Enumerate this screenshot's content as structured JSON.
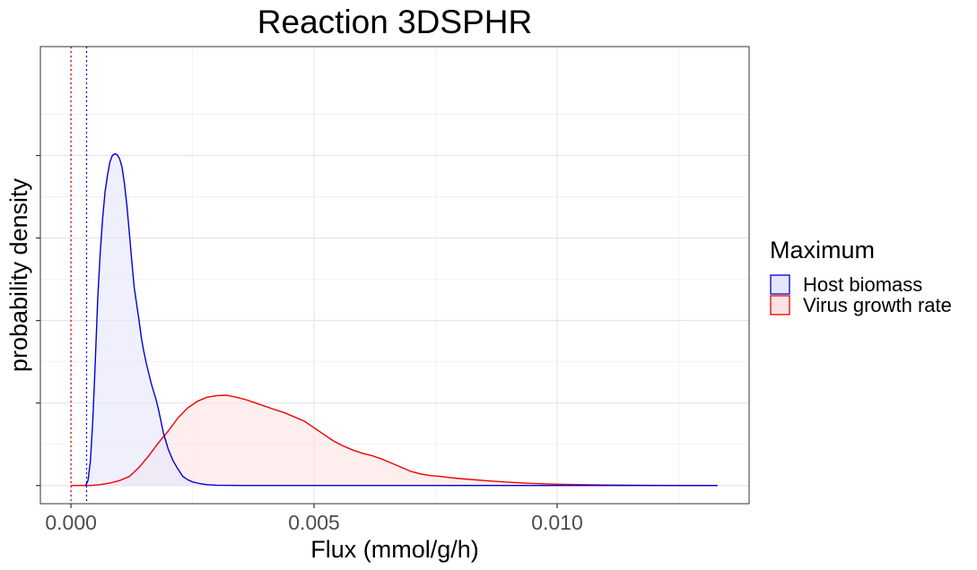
{
  "chart_data": {
    "type": "area",
    "title": "Reaction 3DSPHR",
    "xlabel": "Flux (mmol/g/h)",
    "ylabel": "probability density",
    "xlim": [
      -0.00063,
      0.01395
    ],
    "ylim": [
      -1.1,
      26.6
    ],
    "x_ticks": [
      {
        "value": 0.0,
        "label": "0.000"
      },
      {
        "value": 0.005,
        "label": "0.005"
      },
      {
        "value": 0.01,
        "label": "0.010"
      }
    ],
    "y_ticks": [
      0,
      5,
      10,
      15,
      20
    ],
    "y_ticks_labeled": false,
    "grid": true,
    "legend": {
      "title": "Maximum",
      "position": "right"
    },
    "series": [
      {
        "name": "Host biomass",
        "line_color": "#0000dd",
        "fill_color": "#e6e6fb",
        "vline": 0.00032,
        "points": [
          [
            0.0003,
            0.0
          ],
          [
            0.00035,
            0.3
          ],
          [
            0.0004,
            1.5
          ],
          [
            0.00045,
            4.0
          ],
          [
            0.0005,
            7.5
          ],
          [
            0.00055,
            11.3
          ],
          [
            0.0006,
            14.0
          ],
          [
            0.00065,
            16.2
          ],
          [
            0.0007,
            17.8
          ],
          [
            0.00075,
            18.8
          ],
          [
            0.0008,
            19.6
          ],
          [
            0.00085,
            20.0
          ],
          [
            0.0009,
            20.1
          ],
          [
            0.00095,
            20.05
          ],
          [
            0.001,
            19.8
          ],
          [
            0.00105,
            19.3
          ],
          [
            0.0011,
            18.3
          ],
          [
            0.00115,
            17.0
          ],
          [
            0.0012,
            15.3
          ],
          [
            0.00125,
            13.6
          ],
          [
            0.0013,
            12.0
          ],
          [
            0.00135,
            11.0
          ],
          [
            0.0014,
            10.0
          ],
          [
            0.00145,
            8.9
          ],
          [
            0.0015,
            8.1
          ],
          [
            0.00155,
            7.4
          ],
          [
            0.0016,
            6.8
          ],
          [
            0.00165,
            6.2
          ],
          [
            0.0017,
            5.7
          ],
          [
            0.00175,
            5.2
          ],
          [
            0.0018,
            4.6
          ],
          [
            0.00185,
            3.9
          ],
          [
            0.0019,
            3.2
          ],
          [
            0.00195,
            2.7
          ],
          [
            0.002,
            2.2
          ],
          [
            0.0021,
            1.5
          ],
          [
            0.0022,
            1.0
          ],
          [
            0.0023,
            0.55
          ],
          [
            0.0024,
            0.35
          ],
          [
            0.0025,
            0.22
          ],
          [
            0.0026,
            0.15
          ],
          [
            0.0027,
            0.09
          ],
          [
            0.0028,
            0.05
          ],
          [
            0.003,
            0.02
          ],
          [
            0.0035,
            0.0
          ],
          [
            0.0133,
            0.0
          ]
        ]
      },
      {
        "name": "Virus growth rate",
        "line_color": "#ee0000",
        "fill_color": "#fde2e2",
        "vline": 0.0,
        "points": [
          [
            0.0,
            0.0
          ],
          [
            0.0004,
            0.0
          ],
          [
            0.0006,
            0.05
          ],
          [
            0.0008,
            0.15
          ],
          [
            0.001,
            0.3
          ],
          [
            0.0012,
            0.55
          ],
          [
            0.0014,
            1.1
          ],
          [
            0.0016,
            1.8
          ],
          [
            0.0018,
            2.6
          ],
          [
            0.002,
            3.3
          ],
          [
            0.0022,
            4.1
          ],
          [
            0.0024,
            4.7
          ],
          [
            0.0026,
            5.1
          ],
          [
            0.0028,
            5.35
          ],
          [
            0.003,
            5.45
          ],
          [
            0.0032,
            5.47
          ],
          [
            0.0034,
            5.35
          ],
          [
            0.0036,
            5.2
          ],
          [
            0.0038,
            5.0
          ],
          [
            0.004,
            4.8
          ],
          [
            0.0042,
            4.6
          ],
          [
            0.0044,
            4.4
          ],
          [
            0.0046,
            4.15
          ],
          [
            0.0048,
            3.9
          ],
          [
            0.005,
            3.5
          ],
          [
            0.0052,
            3.1
          ],
          [
            0.0054,
            2.7
          ],
          [
            0.0056,
            2.4
          ],
          [
            0.0058,
            2.15
          ],
          [
            0.006,
            1.95
          ],
          [
            0.0062,
            1.8
          ],
          [
            0.0064,
            1.6
          ],
          [
            0.0066,
            1.35
          ],
          [
            0.0068,
            1.1
          ],
          [
            0.007,
            0.85
          ],
          [
            0.0072,
            0.7
          ],
          [
            0.0074,
            0.6
          ],
          [
            0.0076,
            0.55
          ],
          [
            0.0078,
            0.48
          ],
          [
            0.008,
            0.42
          ],
          [
            0.0085,
            0.3
          ],
          [
            0.009,
            0.2
          ],
          [
            0.0095,
            0.13
          ],
          [
            0.01,
            0.08
          ],
          [
            0.0105,
            0.05
          ],
          [
            0.011,
            0.03
          ],
          [
            0.012,
            0.01
          ],
          [
            0.0133,
            0.0
          ]
        ]
      }
    ]
  }
}
